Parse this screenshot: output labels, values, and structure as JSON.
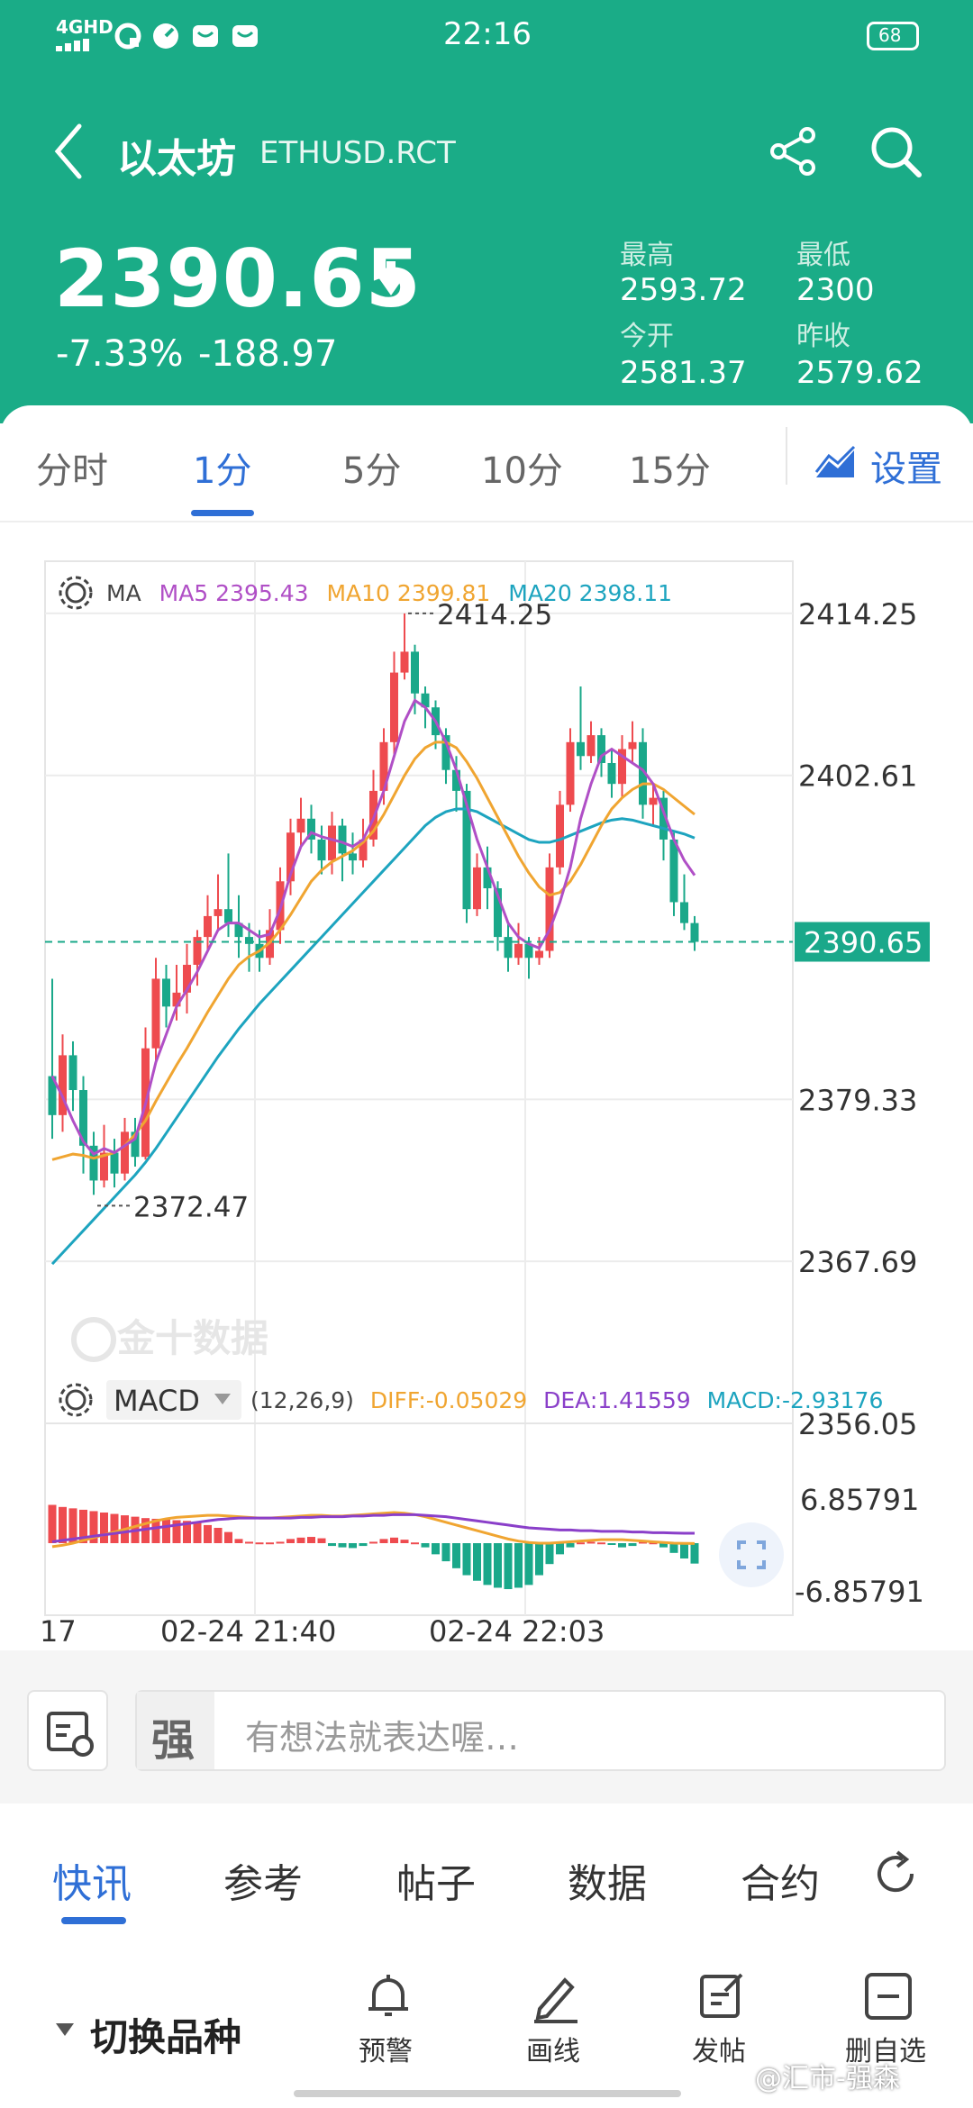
{
  "status_bar": {
    "network": "4GHD",
    "time": "22:16",
    "battery": "68"
  },
  "header": {
    "back_icon": "chevron-left-icon",
    "name": "以太坊",
    "symbol": "ETHUSD.RCT",
    "share_icon": "share-icon",
    "search_icon": "search-icon",
    "price": "2390.65",
    "direction_icon": "arrow-down-icon",
    "change_pct": "-7.33%",
    "change_abs": "-188.97",
    "stats": {
      "high_label": "最高",
      "high": "2593.72",
      "low_label": "最低",
      "low": "2300",
      "open_label": "今开",
      "open": "2581.37",
      "prev_label": "昨收",
      "prev": "2579.62"
    }
  },
  "tabs": {
    "items": [
      "分时",
      "1分",
      "5分",
      "10分",
      "15分"
    ],
    "active": "1分",
    "settings_label": "设置"
  },
  "chart_legend": {
    "ma_label": "MA",
    "ma5": "MA5 2395.43",
    "ma10": "MA10 2399.81",
    "ma20": "MA20 2398.11",
    "macd_label": "MACD",
    "macd_params": "(12,26,9)",
    "diff": "DIFF:-0.05029",
    "dea": "DEA:1.41559",
    "macd_value": "MACD:-2.93176"
  },
  "chart_labels": {
    "max_marker": "2414.25",
    "min_marker": "2372.47",
    "price_tag": "2390.65",
    "y_ticks": [
      "2414.25",
      "2402.61",
      "2379.33",
      "2367.69",
      "2356.05"
    ],
    "macd_ticks": [
      "6.85791",
      "-6.85791"
    ],
    "x_ticks": [
      "17",
      "02-24 21:40",
      "02-24 22:03"
    ],
    "watermark": "金十数据"
  },
  "chart_data": {
    "type": "candlestick",
    "ylim": [
      2356.05,
      2418.0
    ],
    "y_ticks": [
      2414.25,
      2402.61,
      2390.65,
      2379.33,
      2367.69,
      2356.05
    ],
    "current_price": 2390.65,
    "high_marker": 2414.25,
    "low_marker": 2372.47,
    "candles": [
      [
        2381.0,
        2378.2,
        2388.0,
        2376.5
      ],
      [
        2378.2,
        2382.5,
        2384.0,
        2377.0
      ],
      [
        2382.5,
        2380.0,
        2383.5,
        2378.5
      ],
      [
        2380.0,
        2376.0,
        2381.0,
        2374.0
      ],
      [
        2376.0,
        2373.5,
        2377.0,
        2372.47
      ],
      [
        2373.5,
        2375.5,
        2377.5,
        2373.0
      ],
      [
        2375.5,
        2374.0,
        2376.5,
        2373.0
      ],
      [
        2374.0,
        2377.0,
        2378.0,
        2373.5
      ],
      [
        2377.0,
        2375.2,
        2378.0,
        2374.5
      ],
      [
        2375.2,
        2383.0,
        2384.5,
        2375.0
      ],
      [
        2383.0,
        2388.0,
        2389.5,
        2382.0
      ],
      [
        2388.0,
        2386.0,
        2389.0,
        2384.5
      ],
      [
        2386.0,
        2387.0,
        2389.0,
        2385.0
      ],
      [
        2387.0,
        2389.0,
        2390.5,
        2385.5
      ],
      [
        2389.0,
        2391.0,
        2391.5,
        2387.5
      ],
      [
        2391.0,
        2392.5,
        2394.0,
        2390.0
      ],
      [
        2392.5,
        2393.0,
        2395.5,
        2391.5
      ],
      [
        2393.0,
        2392.0,
        2397.0,
        2391.0
      ],
      [
        2392.0,
        2391.0,
        2394.0,
        2389.5
      ],
      [
        2391.0,
        2390.5,
        2392.0,
        2388.5
      ],
      [
        2390.5,
        2389.5,
        2391.5,
        2388.5
      ],
      [
        2389.5,
        2391.5,
        2393.0,
        2389.0
      ],
      [
        2391.5,
        2395.0,
        2396.0,
        2390.5
      ],
      [
        2395.0,
        2398.5,
        2399.5,
        2394.0
      ],
      [
        2398.5,
        2399.5,
        2401.0,
        2397.5
      ],
      [
        2399.5,
        2398.0,
        2400.5,
        2397.0
      ],
      [
        2398.0,
        2396.5,
        2399.0,
        2395.5
      ],
      [
        2396.5,
        2399.0,
        2400.0,
        2395.5
      ],
      [
        2399.0,
        2397.0,
        2399.5,
        2395.0
      ],
      [
        2397.0,
        2396.5,
        2398.5,
        2395.5
      ],
      [
        2396.5,
        2398.0,
        2399.5,
        2396.0
      ],
      [
        2398.0,
        2401.5,
        2403.0,
        2397.5
      ],
      [
        2401.5,
        2405.0,
        2406.0,
        2400.5
      ],
      [
        2405.0,
        2410.0,
        2411.5,
        2404.0
      ],
      [
        2410.0,
        2411.5,
        2414.25,
        2409.5
      ],
      [
        2411.5,
        2408.5,
        2412.0,
        2407.0
      ],
      [
        2408.5,
        2407.5,
        2409.0,
        2406.0
      ],
      [
        2407.5,
        2405.5,
        2408.0,
        2404.5
      ],
      [
        2405.5,
        2403.0,
        2406.0,
        2402.0
      ],
      [
        2403.0,
        2401.5,
        2404.0,
        2400.0
      ],
      [
        2401.5,
        2393.0,
        2402.0,
        2392.0
      ],
      [
        2393.0,
        2396.0,
        2397.0,
        2392.5
      ],
      [
        2396.0,
        2394.5,
        2397.5,
        2393.0
      ],
      [
        2394.5,
        2391.0,
        2395.0,
        2390.0
      ],
      [
        2391.0,
        2389.5,
        2392.0,
        2388.5
      ],
      [
        2389.5,
        2390.5,
        2392.0,
        2389.0
      ],
      [
        2390.5,
        2389.5,
        2391.0,
        2388.0
      ],
      [
        2389.5,
        2390.0,
        2391.0,
        2389.0
      ],
      [
        2390.0,
        2396.0,
        2397.0,
        2389.5
      ],
      [
        2396.0,
        2400.5,
        2401.5,
        2395.5
      ],
      [
        2400.5,
        2405.0,
        2406.0,
        2400.0
      ],
      [
        2405.0,
        2404.0,
        2409.0,
        2403.0
      ],
      [
        2404.0,
        2405.5,
        2406.5,
        2403.5
      ],
      [
        2405.5,
        2403.5,
        2406.0,
        2402.5
      ],
      [
        2403.5,
        2402.0,
        2404.5,
        2401.0
      ],
      [
        2402.0,
        2404.5,
        2405.5,
        2401.0
      ],
      [
        2404.5,
        2405.0,
        2406.5,
        2403.5
      ],
      [
        2405.0,
        2400.5,
        2406.0,
        2399.5
      ],
      [
        2400.5,
        2401.0,
        2402.0,
        2399.0
      ],
      [
        2401.0,
        2398.0,
        2401.5,
        2396.5
      ],
      [
        2398.0,
        2393.5,
        2398.5,
        2392.5
      ],
      [
        2393.5,
        2392.0,
        2395.5,
        2391.5
      ],
      [
        2392.0,
        2390.65,
        2392.5,
        2390.0
      ]
    ],
    "ma5": [
      2381.0,
      2379.5,
      2377.8,
      2376.3,
      2375.4,
      2375.8,
      2375.5,
      2376.0,
      2376.5,
      2379.0,
      2382.0,
      2384.0,
      2386.0,
      2387.2,
      2388.5,
      2390.0,
      2391.5,
      2392.0,
      2392.0,
      2391.5,
      2391.0,
      2391.2,
      2393.0,
      2395.5,
      2397.5,
      2398.5,
      2398.2,
      2398.0,
      2397.8,
      2397.5,
      2398.0,
      2399.5,
      2401.5,
      2404.0,
      2406.5,
      2408.0,
      2407.5,
      2406.5,
      2405.0,
      2403.0,
      2400.5,
      2398.0,
      2396.0,
      2394.0,
      2392.0,
      2391.0,
      2390.5,
      2390.2,
      2391.5,
      2393.5,
      2396.0,
      2399.5,
      2402.0,
      2404.0,
      2404.5,
      2404.0,
      2403.5,
      2403.0,
      2402.0,
      2400.0,
      2398.0,
      2396.5,
      2395.43
    ],
    "ma10": [
      2375.0,
      2375.2,
      2375.4,
      2375.3,
      2375.1,
      2375.3,
      2375.5,
      2376.0,
      2376.8,
      2377.8,
      2379.2,
      2380.5,
      2381.8,
      2383.0,
      2384.3,
      2385.6,
      2386.8,
      2388.0,
      2389.0,
      2389.6,
      2390.0,
      2390.6,
      2391.5,
      2392.6,
      2393.8,
      2395.0,
      2395.8,
      2396.4,
      2396.8,
      2397.2,
      2397.8,
      2398.6,
      2399.8,
      2401.2,
      2402.6,
      2403.8,
      2404.6,
      2405.0,
      2405.0,
      2404.6,
      2403.6,
      2402.4,
      2401.0,
      2399.6,
      2398.2,
      2396.8,
      2395.6,
      2394.6,
      2394.0,
      2394.2,
      2395.0,
      2396.2,
      2397.6,
      2399.0,
      2400.2,
      2401.0,
      2401.6,
      2402.0,
      2402.0,
      2401.6,
      2401.0,
      2400.4,
      2399.81
    ],
    "ma20": [
      2367.5,
      2368.3,
      2369.1,
      2369.9,
      2370.7,
      2371.5,
      2372.3,
      2373.1,
      2373.9,
      2374.8,
      2375.8,
      2376.9,
      2378.0,
      2379.1,
      2380.2,
      2381.3,
      2382.4,
      2383.4,
      2384.4,
      2385.3,
      2386.2,
      2387.0,
      2387.8,
      2388.6,
      2389.4,
      2390.2,
      2391.0,
      2391.8,
      2392.6,
      2393.4,
      2394.2,
      2395.0,
      2395.8,
      2396.6,
      2397.4,
      2398.2,
      2399.0,
      2399.6,
      2400.0,
      2400.2,
      2400.2,
      2400.0,
      2399.6,
      2399.2,
      2398.8,
      2398.4,
      2398.0,
      2397.8,
      2397.8,
      2398.0,
      2398.3,
      2398.6,
      2398.9,
      2399.2,
      2399.4,
      2399.5,
      2399.4,
      2399.2,
      2399.0,
      2398.8,
      2398.6,
      2398.4,
      2398.11
    ],
    "macd": {
      "ylim": [
        -6.85791,
        6.85791
      ],
      "diff": [
        -0.5,
        -0.3,
        0.0,
        0.4,
        0.8,
        1.2,
        1.6,
        2.0,
        2.4,
        2.8,
        3.2,
        3.5,
        3.7,
        3.8,
        3.9,
        4.0,
        4.0,
        3.9,
        3.8,
        3.7,
        3.6,
        3.6,
        3.7,
        3.8,
        3.9,
        4.0,
        4.0,
        3.9,
        3.9,
        4.0,
        4.1,
        4.2,
        4.3,
        4.4,
        4.3,
        4.1,
        3.8,
        3.4,
        3.0,
        2.6,
        2.2,
        1.8,
        1.4,
        1.0,
        0.6,
        0.3,
        0.1,
        0.0,
        0.0,
        0.1,
        0.2,
        0.3,
        0.4,
        0.5,
        0.5,
        0.5,
        0.4,
        0.3,
        0.2,
        0.1,
        0.0,
        -0.03,
        -0.05029
      ],
      "dea": [
        0.2,
        0.4,
        0.6,
        0.8,
        1.0,
        1.2,
        1.4,
        1.6,
        1.8,
        2.0,
        2.2,
        2.4,
        2.6,
        2.8,
        3.0,
        3.2,
        3.4,
        3.5,
        3.6,
        3.6,
        3.6,
        3.6,
        3.6,
        3.6,
        3.7,
        3.7,
        3.8,
        3.8,
        3.8,
        3.9,
        3.9,
        4.0,
        4.0,
        4.1,
        4.1,
        4.1,
        4.0,
        3.9,
        3.8,
        3.6,
        3.4,
        3.2,
        3.0,
        2.8,
        2.6,
        2.4,
        2.2,
        2.1,
        2.0,
        1.9,
        1.9,
        1.8,
        1.8,
        1.7,
        1.7,
        1.7,
        1.6,
        1.6,
        1.5,
        1.5,
        1.45,
        1.43,
        1.41559
      ],
      "hist": [
        5.5,
        5.2,
        5.0,
        4.8,
        4.6,
        4.4,
        4.2,
        4.0,
        3.8,
        3.6,
        3.5,
        3.4,
        3.3,
        3.2,
        3.0,
        2.6,
        2.2,
        1.6,
        0.6,
        0.2,
        0.1,
        0.1,
        0.2,
        0.6,
        0.8,
        0.9,
        0.7,
        -0.4,
        -0.6,
        -0.7,
        -0.4,
        0.2,
        0.6,
        0.8,
        0.5,
        0.1,
        -0.6,
        -1.6,
        -2.6,
        -3.6,
        -4.6,
        -5.4,
        -6.0,
        -6.4,
        -6.6,
        -6.4,
        -6.0,
        -4.6,
        -3.0,
        -1.6,
        -0.6,
        0.1,
        0.2,
        0.1,
        -0.2,
        -0.6,
        -0.4,
        0.2,
        0.1,
        -0.6,
        -1.4,
        -2.2,
        -2.93176
      ]
    }
  },
  "comment_bar": {
    "placeholder": "有想法就表达喔…",
    "left_icon": "report-chart-icon",
    "avatar_icon": "strong-badge-icon"
  },
  "news_tabs": {
    "items": [
      "快讯",
      "参考",
      "帖子",
      "数据",
      "合约"
    ],
    "active": "快讯",
    "refresh_icon": "refresh-icon"
  },
  "toolbar": {
    "switch_label": "切换品种",
    "alert_label": "预警",
    "draw_label": "画线",
    "post_label": "发帖",
    "watchlist_label": "删自选",
    "credit": "@汇市-强森"
  },
  "colors": {
    "brand_green": "#1aac87",
    "up_red": "#ee4b4f",
    "down_green": "#1aa88a",
    "ma5": "#b04fc6",
    "ma10": "#f0a531",
    "ma20": "#1da4bf",
    "accent_blue": "#2f6fd6"
  }
}
